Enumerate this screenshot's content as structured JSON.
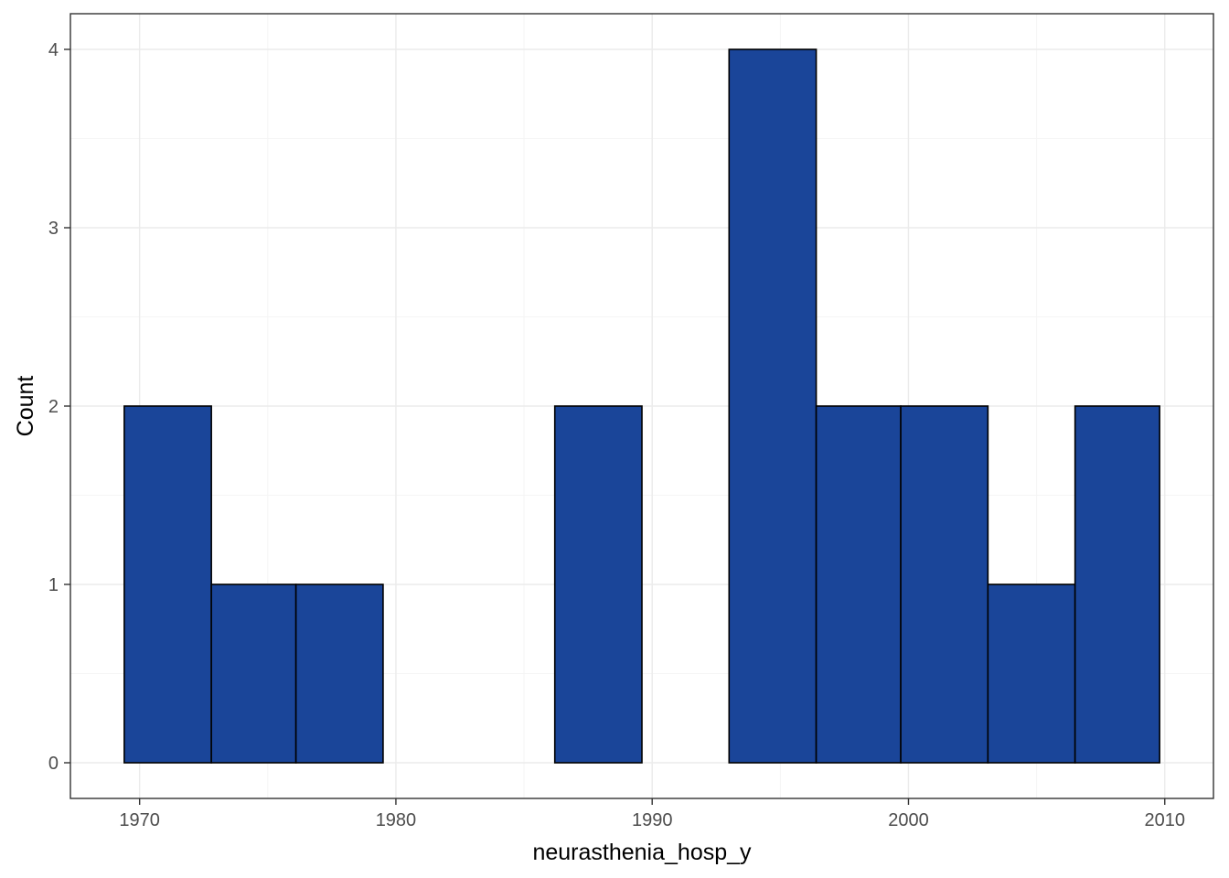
{
  "chart_data": {
    "type": "bar",
    "title": "",
    "xlabel": "neurasthenia_hosp_y",
    "ylabel": "Count",
    "xlim": [
      1967.3,
      2011.9
    ],
    "ylim": [
      -0.2,
      4.2
    ],
    "x_ticks": [
      1970,
      1980,
      1990,
      2000,
      2010
    ],
    "x_tick_labels": [
      "1970",
      "1980",
      "1990",
      "2000",
      "2010"
    ],
    "y_ticks": [
      0,
      1,
      2,
      3,
      4
    ],
    "y_tick_labels": [
      "0",
      "1",
      "2",
      "3",
      "4"
    ],
    "bins": [
      {
        "x0": 1969.4,
        "x1": 1972.8,
        "count": 2
      },
      {
        "x0": 1972.8,
        "x1": 1976.1,
        "count": 1
      },
      {
        "x0": 1976.1,
        "x1": 1979.5,
        "count": 1
      },
      {
        "x0": 1979.5,
        "x1": 1982.9,
        "count": 0
      },
      {
        "x0": 1982.9,
        "x1": 1986.2,
        "count": 0
      },
      {
        "x0": 1986.2,
        "x1": 1989.6,
        "count": 2
      },
      {
        "x0": 1989.6,
        "x1": 1993.0,
        "count": 0
      },
      {
        "x0": 1993.0,
        "x1": 1996.4,
        "count": 4
      },
      {
        "x0": 1996.4,
        "x1": 1999.7,
        "count": 2
      },
      {
        "x0": 1999.7,
        "x1": 2003.1,
        "count": 2
      },
      {
        "x0": 2003.1,
        "x1": 2006.5,
        "count": 1
      },
      {
        "x0": 2006.5,
        "x1": 2009.8,
        "count": 2
      }
    ],
    "grid": true,
    "legend": "none",
    "colors": {
      "bar_fill": "#1a4599",
      "bar_outline": "#000000",
      "grid_major": "#ebebeb",
      "grid_minor": "#f5f5f5",
      "panel_border": "#333333"
    }
  }
}
